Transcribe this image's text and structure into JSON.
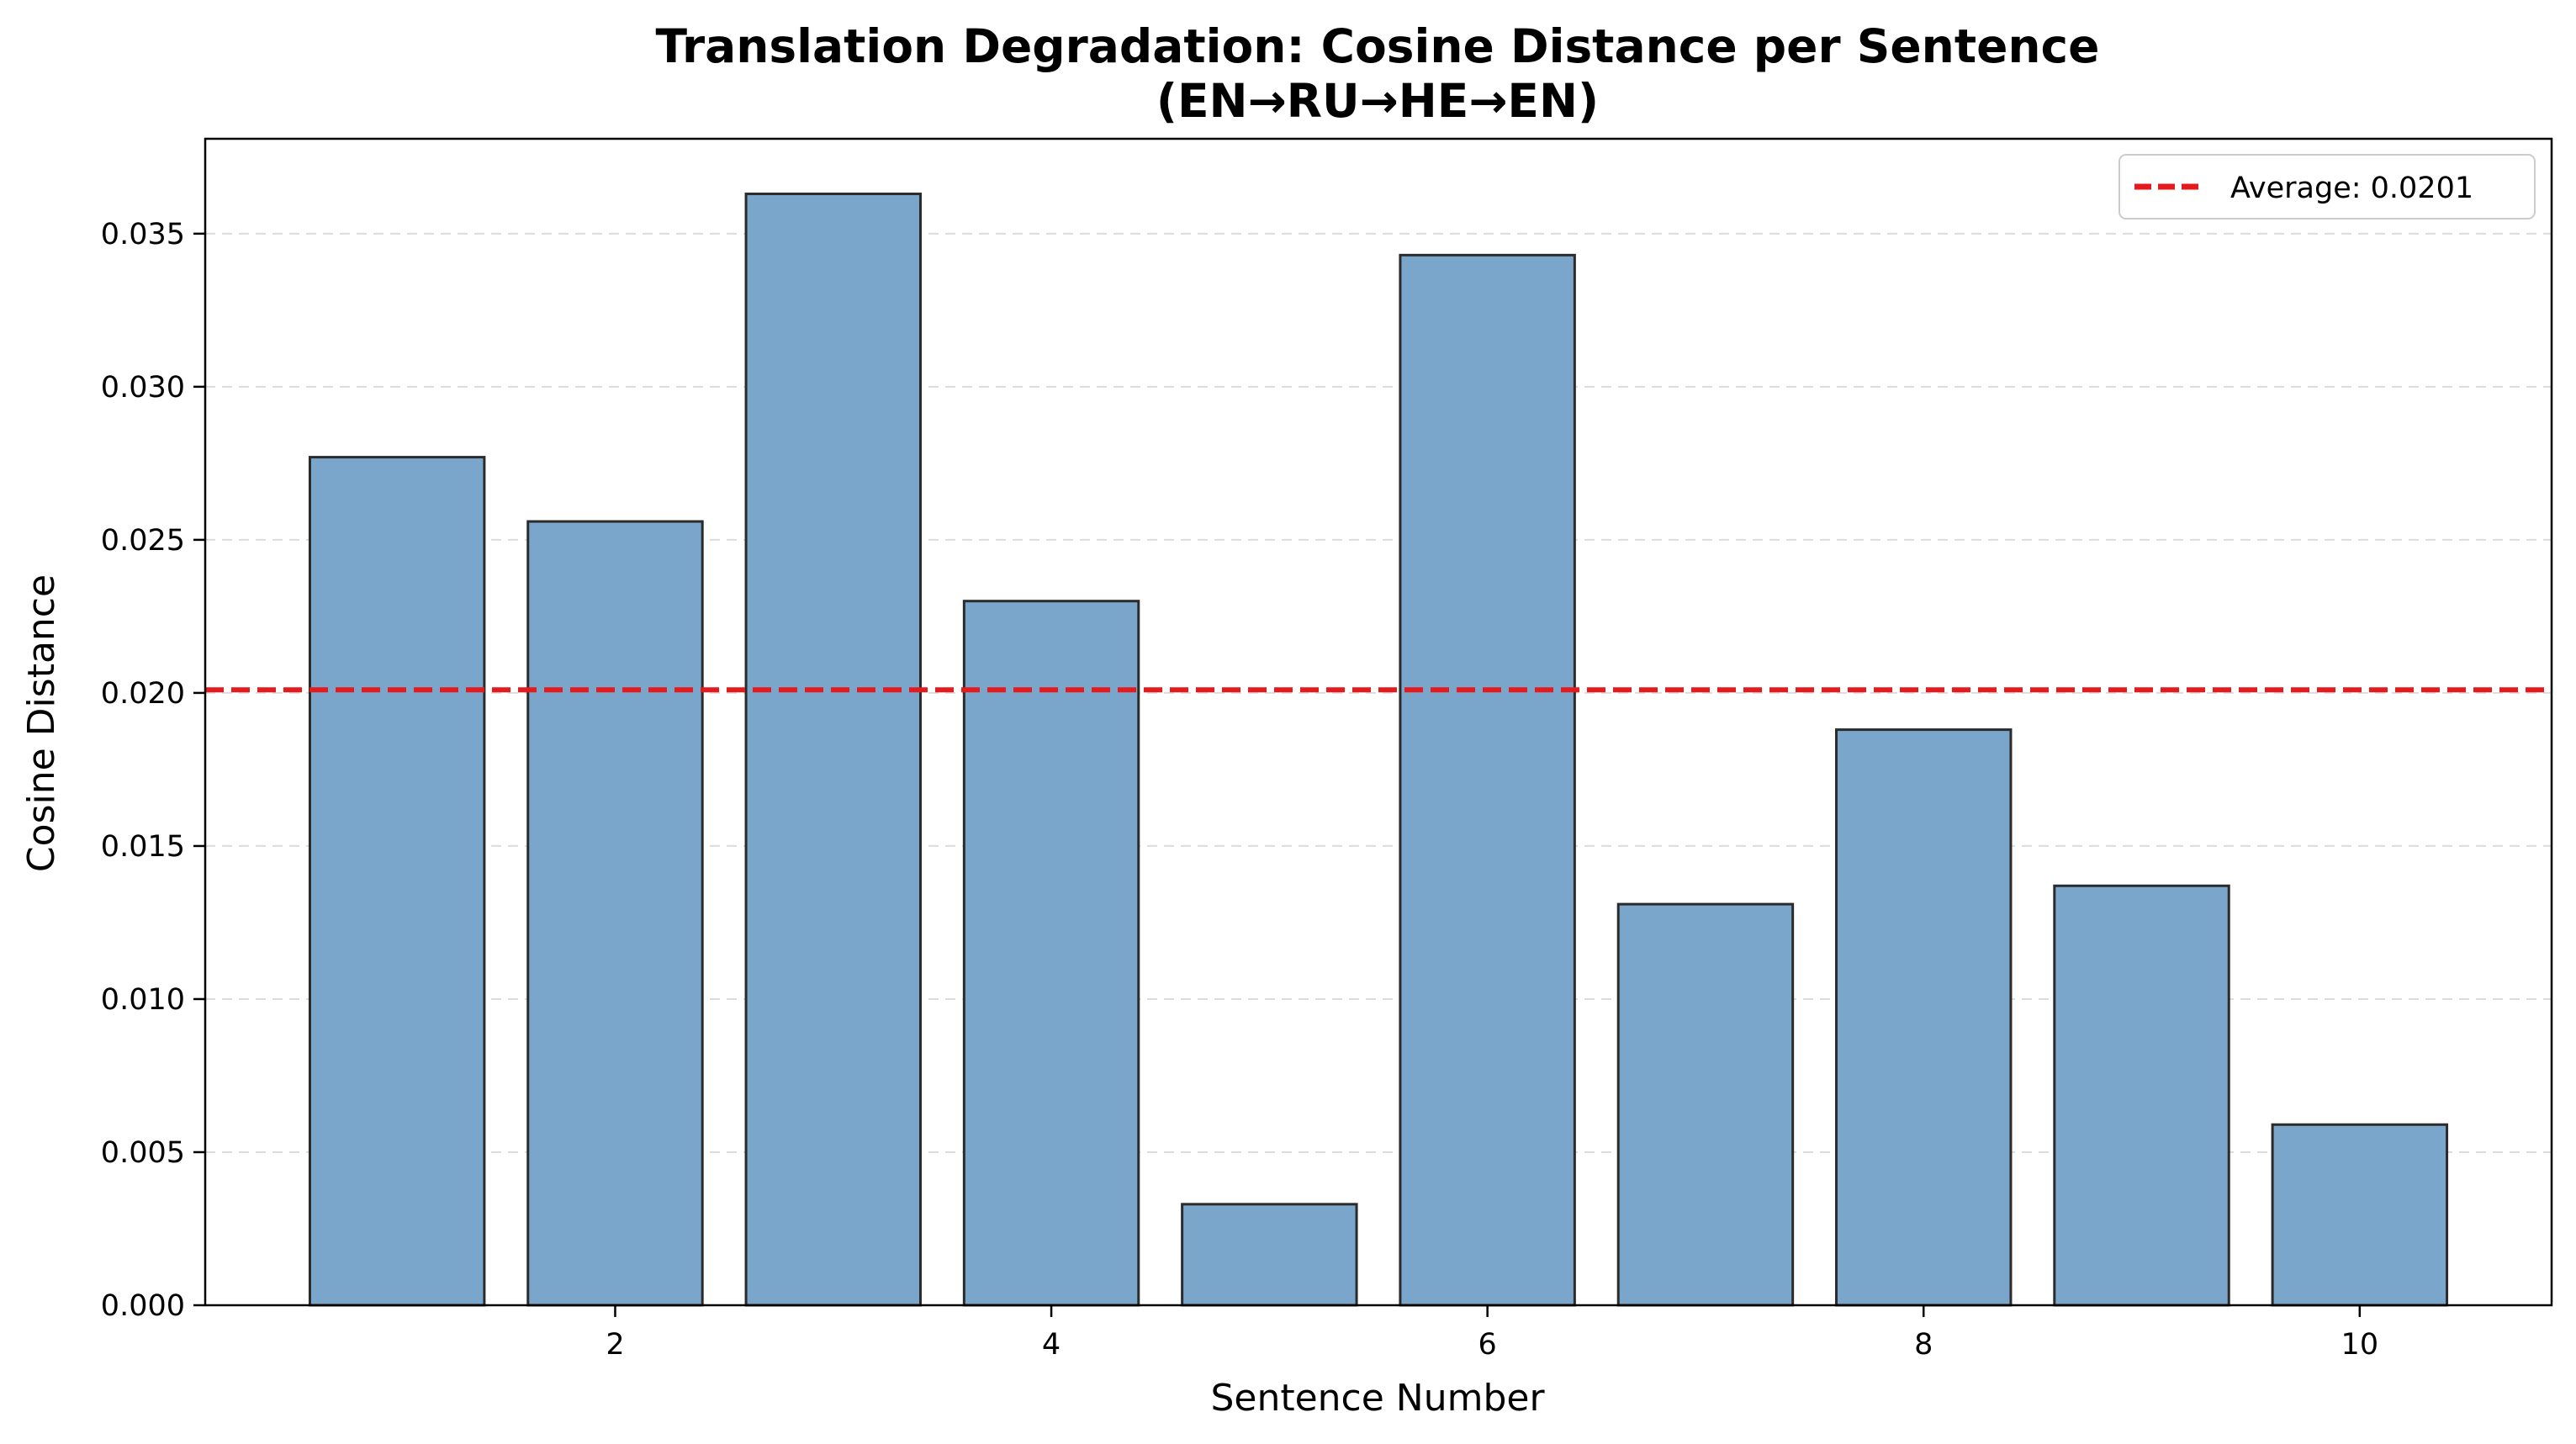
{
  "chart_data": {
    "type": "bar",
    "title_line1": "Translation Degradation: Cosine Distance per Sentence",
    "title_line2": "(EN→RU→HE→EN)",
    "xlabel": "Sentence Number",
    "ylabel": "Cosine Distance",
    "x": [
      1,
      2,
      3,
      4,
      5,
      6,
      7,
      8,
      9,
      10
    ],
    "values": [
      0.0277,
      0.0256,
      0.0363,
      0.023,
      0.0033,
      0.0343,
      0.0131,
      0.0188,
      0.0137,
      0.0059
    ],
    "xlim": [
      0.12,
      10.88
    ],
    "ylim": [
      0,
      0.0381
    ],
    "xticks": [
      2,
      4,
      6,
      8,
      10
    ],
    "yticks": [
      0.0,
      0.005,
      0.01,
      0.015,
      0.02,
      0.025,
      0.03,
      0.035
    ],
    "ytick_labels": [
      "0.000",
      "0.005",
      "0.010",
      "0.015",
      "0.020",
      "0.025",
      "0.030",
      "0.035"
    ],
    "average": 0.0201,
    "legend": {
      "label": "Average: 0.0201",
      "position": "top-right"
    },
    "grid": "y-dashed",
    "colors": {
      "bar": "#7ba6cb",
      "bar_edge": "#2b2b2b",
      "average_line": "#e41a1c",
      "grid": "#dcdcdc"
    }
  }
}
